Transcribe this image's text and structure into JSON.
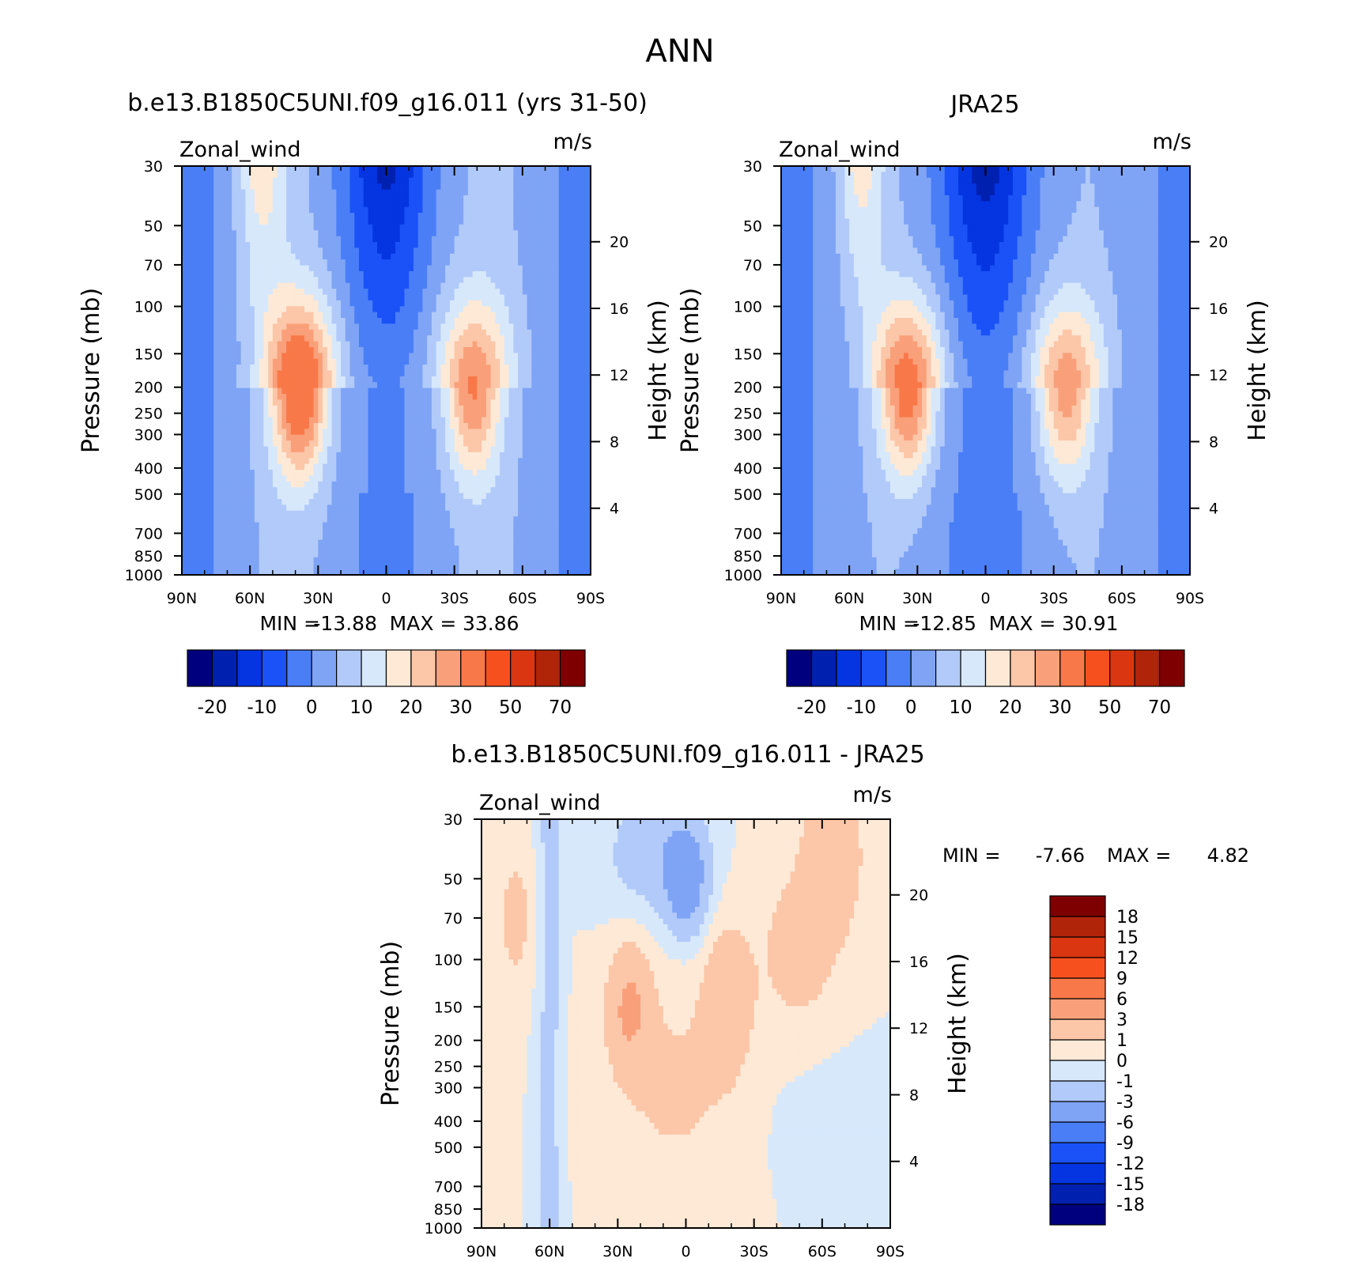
{
  "figure": {
    "title": "ANN"
  },
  "chart_data": [
    {
      "type": "contour",
      "title": "b.e13.B1850C5UNI.f09_g16.011 (yrs 31-50)",
      "variable": "Zonal_wind",
      "units": "m/s",
      "ylabel": "Pressure (mb)",
      "ylabel_right": "Height (km)",
      "x_ticks": [
        "90N",
        "60N",
        "30N",
        "0",
        "30S",
        "60S",
        "90S"
      ],
      "y_ticks": [
        "30",
        "50",
        "70",
        "100",
        "150",
        "200",
        "250",
        "300",
        "400",
        "500",
        "700",
        "850",
        "1000"
      ],
      "y_ticks_right": [
        "20",
        "16",
        "12",
        "8",
        "4"
      ],
      "xlim": [
        -90,
        90
      ],
      "ylim": [
        1000,
        30
      ],
      "min_label": "MIN =",
      "min": "-13.88",
      "max_label": "MAX =",
      "max": "33.86",
      "jets": [
        {
          "lat": -38,
          "level": 200,
          "peak": 25
        },
        {
          "lat": 38,
          "level": 200,
          "peak": 34
        }
      ],
      "colorbar": {
        "orientation": "horizontal",
        "labels": [
          "-20",
          "-10",
          "0",
          "10",
          "20",
          "30",
          "50",
          "70"
        ],
        "colors": [
          "#00007f",
          "#0020b0",
          "#0435e0",
          "#1a52f7",
          "#4a7ef7",
          "#7fa4f5",
          "#b1caf9",
          "#d7e8fb",
          "#fde9d6",
          "#fcc6a8",
          "#f9a07a",
          "#f97849",
          "#f7501f",
          "#d93611",
          "#b02409",
          "#7f0000"
        ]
      }
    },
    {
      "type": "contour",
      "title": "JRA25",
      "variable": "Zonal_wind",
      "units": "m/s",
      "ylabel": "Pressure (mb)",
      "ylabel_right": "Height (km)",
      "x_ticks": [
        "90N",
        "60N",
        "30N",
        "0",
        "30S",
        "60S",
        "90S"
      ],
      "y_ticks": [
        "30",
        "50",
        "70",
        "100",
        "150",
        "200",
        "250",
        "300",
        "400",
        "500",
        "700",
        "850",
        "1000"
      ],
      "y_ticks_right": [
        "20",
        "16",
        "12",
        "8",
        "4"
      ],
      "xlim": [
        -90,
        90
      ],
      "ylim": [
        1000,
        30
      ],
      "min_label": "MIN =",
      "min": "-12.85",
      "max_label": "MAX =",
      "max": "30.91",
      "jets": [
        {
          "lat": -35,
          "level": 200,
          "peak": 24
        },
        {
          "lat": 34,
          "level": 200,
          "peak": 30
        }
      ],
      "colorbar": {
        "orientation": "horizontal",
        "labels": [
          "-20",
          "-10",
          "0",
          "10",
          "20",
          "30",
          "50",
          "70"
        ],
        "colors": [
          "#00007f",
          "#0020b0",
          "#0435e0",
          "#1a52f7",
          "#4a7ef7",
          "#7fa4f5",
          "#b1caf9",
          "#d7e8fb",
          "#fde9d6",
          "#fcc6a8",
          "#f9a07a",
          "#f97849",
          "#f7501f",
          "#d93611",
          "#b02409",
          "#7f0000"
        ]
      }
    },
    {
      "type": "contour",
      "title": "b.e13.B1850C5UNI.f09_g16.011 - JRA25",
      "variable": "Zonal_wind",
      "units": "m/s",
      "ylabel": "Pressure (mb)",
      "ylabel_right": "Height (km)",
      "x_ticks": [
        "90N",
        "60N",
        "30N",
        "0",
        "30S",
        "60S",
        "90S"
      ],
      "y_ticks": [
        "30",
        "50",
        "70",
        "100",
        "150",
        "200",
        "250",
        "300",
        "400",
        "500",
        "700",
        "850",
        "1000"
      ],
      "y_ticks_right": [
        "20",
        "16",
        "12",
        "8",
        "4"
      ],
      "xlim": [
        -90,
        90
      ],
      "ylim": [
        1000,
        30
      ],
      "min_label": "MIN =",
      "min": "-7.66",
      "max_label": "MAX =",
      "max": "4.82",
      "colorbar": {
        "orientation": "vertical",
        "labels": [
          "-18",
          "-15",
          "-12",
          "-9",
          "-6",
          "-3",
          "-1",
          "0",
          "1",
          "3",
          "6",
          "9",
          "12",
          "15",
          "18"
        ],
        "colors": [
          "#00007f",
          "#0020b0",
          "#0435e0",
          "#1a52f7",
          "#4a7ef7",
          "#7fa4f5",
          "#b1caf9",
          "#d7e8fb",
          "#fde9d6",
          "#fcc6a8",
          "#f9a07a",
          "#f97849",
          "#f7501f",
          "#d93611",
          "#b02409",
          "#7f0000"
        ]
      }
    }
  ]
}
